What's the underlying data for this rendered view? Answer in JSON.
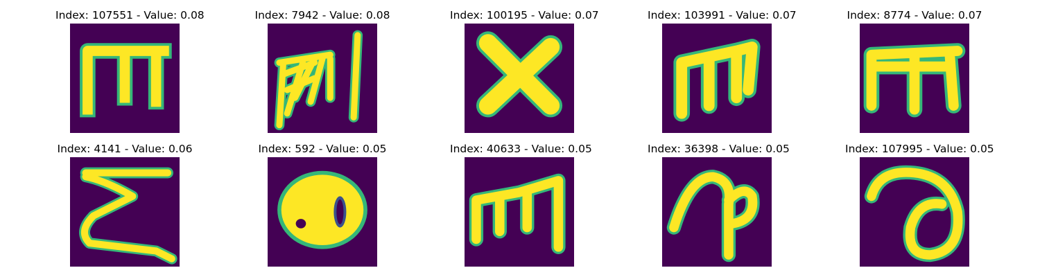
{
  "figure": {
    "background_color": "#ffffff",
    "image_background_color": "#440154",
    "colormap": "viridis"
  },
  "panels": [
    {
      "title": "Index: 107551 - Value: 0.08",
      "glyph": "E-like letter (m-shaped)"
    },
    {
      "title": "Index: 7942 - Value: 0.08",
      "glyph": "scribbled m with vertical stroke"
    },
    {
      "title": "Index: 100195 - Value: 0.07",
      "glyph": "X"
    },
    {
      "title": "Index: 103991 - Value: 0.07",
      "glyph": "m"
    },
    {
      "title": "Index: 8774 - Value: 0.07",
      "glyph": "m with crossbar"
    },
    {
      "title": "Index: 4141 - Value: 0.06",
      "glyph": "zigzag z"
    },
    {
      "title": "Index: 592 - Value: 0.05",
      "glyph": "blob 80"
    },
    {
      "title": "Index: 40633 - Value: 0.05",
      "glyph": "m slanted"
    },
    {
      "title": "Index: 36398 - Value: 0.05",
      "glyph": "curled p"
    },
    {
      "title": "Index: 107995 - Value: 0.05",
      "glyph": "curled a"
    }
  ]
}
